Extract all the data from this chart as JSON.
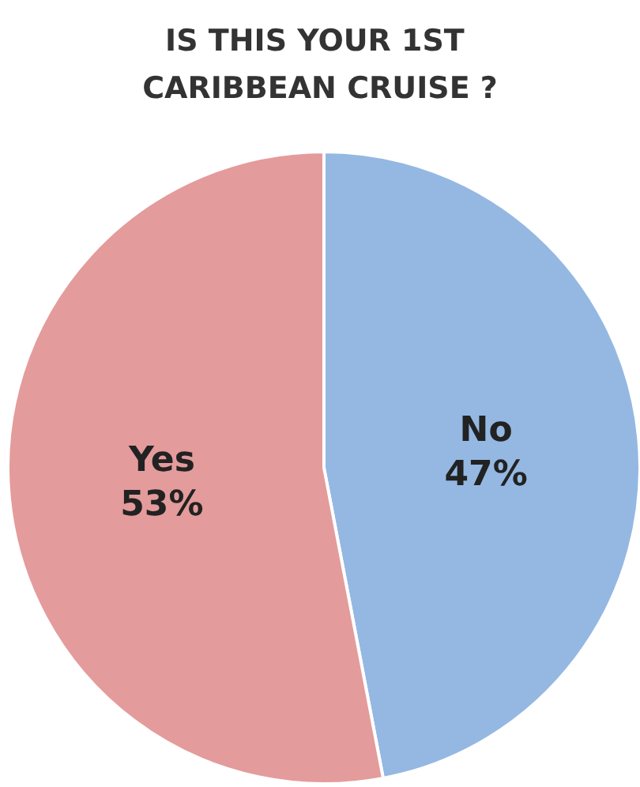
{
  "chart_data": {
    "type": "pie",
    "title": "IS THIS YOUR 1ST CARIBBEAN CRUISE ?",
    "categories": [
      "No",
      "Yes"
    ],
    "values": [
      47,
      53
    ],
    "colors": [
      "#94b8e2",
      "#e49b9b"
    ],
    "value_labels": [
      "47%",
      "53%"
    ],
    "legend": false
  }
}
